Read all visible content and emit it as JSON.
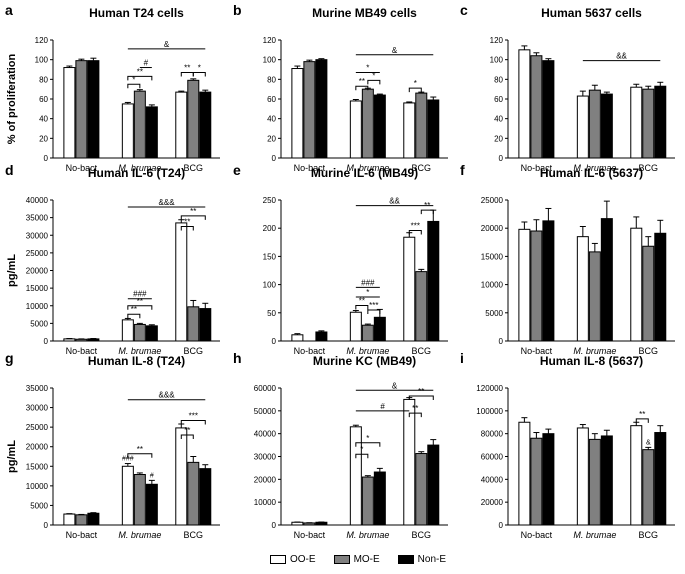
{
  "colors": {
    "oo": "#ffffff",
    "mo": "#808080",
    "non": "#000000",
    "axis": "#000000"
  },
  "legend": [
    {
      "label": "OO-E",
      "color": "#ffffff"
    },
    {
      "label": "MO-E",
      "color": "#808080"
    },
    {
      "label": "Non-E",
      "color": "#000000"
    }
  ],
  "chart_data": [
    {
      "letter": "a",
      "title": "Human T24 cells",
      "type": "bar",
      "ylabel": "% of proliferation",
      "ylim": [
        0,
        120
      ],
      "yticks": [
        0,
        20,
        40,
        60,
        80,
        100,
        120
      ],
      "tick_labels": [
        "0",
        "20",
        "40",
        "60",
        "80",
        "100",
        "120"
      ],
      "categories": [
        "No-bact",
        "M. brumae",
        "BCG"
      ],
      "series": [
        {
          "name": "OO-E",
          "values": [
            92,
            55,
            67
          ],
          "errors": [
            1.5,
            1.5,
            1
          ]
        },
        {
          "name": "MO-E",
          "values": [
            99,
            68,
            79
          ],
          "errors": [
            1.5,
            1.5,
            1.5
          ]
        },
        {
          "name": "Non-E",
          "values": [
            99,
            52,
            67
          ],
          "errors": [
            2.5,
            2,
            2
          ]
        }
      ],
      "annotations": [
        {
          "from": [
            1,
            0
          ],
          "to": [
            2,
            2
          ],
          "y": 111,
          "label": "&",
          "style": "line"
        },
        {
          "from": [
            1,
            0
          ],
          "to": [
            1,
            1
          ],
          "y": 75,
          "label": "*",
          "style": "bracket"
        },
        {
          "from": [
            1,
            0
          ],
          "to": [
            1,
            2
          ],
          "y": 83,
          "label": "**",
          "style": "bracket"
        },
        {
          "from": [
            1,
            1
          ],
          "to": [
            1,
            2
          ],
          "y": 92,
          "label": "#",
          "style": "line"
        },
        {
          "from": [
            2,
            0
          ],
          "to": [
            2,
            1
          ],
          "y": 87,
          "label": "**",
          "style": "bracket"
        },
        {
          "from": [
            2,
            1
          ],
          "to": [
            2,
            2
          ],
          "y": 87,
          "label": "*",
          "style": "bracket"
        }
      ]
    },
    {
      "letter": "b",
      "title": "Murine MB49 cells",
      "type": "bar",
      "ylabel": "",
      "ylim": [
        0,
        120
      ],
      "yticks": [
        0,
        20,
        40,
        60,
        80,
        100,
        120
      ],
      "tick_labels": [
        "0",
        "20",
        "40",
        "60",
        "80",
        "100",
        "120"
      ],
      "categories": [
        "No-bact",
        "M. brumae",
        "BCG"
      ],
      "series": [
        {
          "name": "OO-E",
          "values": [
            91,
            58,
            56
          ],
          "errors": [
            2.5,
            1.5,
            1
          ]
        },
        {
          "name": "MO-E",
          "values": [
            98,
            70,
            66
          ],
          "errors": [
            1.5,
            1,
            1
          ]
        },
        {
          "name": "Non-E",
          "values": [
            100,
            64,
            59
          ],
          "errors": [
            1,
            1,
            3
          ]
        }
      ],
      "annotations": [
        {
          "from": [
            1,
            0
          ],
          "to": [
            2,
            2
          ],
          "y": 105,
          "label": "&",
          "style": "line"
        },
        {
          "from": [
            1,
            0
          ],
          "to": [
            1,
            2
          ],
          "y": 87,
          "label": "*",
          "style": "line"
        },
        {
          "from": [
            1,
            0
          ],
          "to": [
            1,
            1
          ],
          "y": 73,
          "label": "**",
          "style": "bracket"
        },
        {
          "from": [
            1,
            1
          ],
          "to": [
            1,
            2
          ],
          "y": 79,
          "label": "*",
          "style": "bracket"
        },
        {
          "from": [
            2,
            0
          ],
          "to": [
            2,
            1
          ],
          "y": 71,
          "label": "*",
          "style": "bracket"
        }
      ]
    },
    {
      "letter": "c",
      "title": "Human 5637 cells",
      "type": "bar",
      "ylabel": "",
      "ylim": [
        0,
        120
      ],
      "yticks": [
        0,
        20,
        40,
        60,
        80,
        100,
        120
      ],
      "tick_labels": [
        "0",
        "20",
        "40",
        "60",
        "80",
        "100",
        "120"
      ],
      "categories": [
        "No-bact",
        "M. brumae",
        "BCG"
      ],
      "series": [
        {
          "name": "OO-E",
          "values": [
            110,
            63,
            72
          ],
          "errors": [
            4,
            5,
            3
          ]
        },
        {
          "name": "MO-E",
          "values": [
            104,
            69,
            70
          ],
          "errors": [
            3,
            5,
            3
          ]
        },
        {
          "name": "Non-E",
          "values": [
            99,
            65,
            73
          ],
          "errors": [
            2,
            2,
            4
          ]
        }
      ],
      "annotations": [
        {
          "from": [
            1,
            0
          ],
          "to": [
            2,
            2
          ],
          "y": 99,
          "label": "&&",
          "style": "line"
        }
      ]
    },
    {
      "letter": "d",
      "title": "Human IL-6 (T24)",
      "type": "bar",
      "ylabel": "pg/mL",
      "ylim": [
        0,
        40000
      ],
      "yticks": [
        0,
        5000,
        10000,
        15000,
        20000,
        25000,
        30000,
        35000,
        40000
      ],
      "tick_labels": [
        "0",
        "5000",
        "10000",
        "15000",
        "20000",
        "25000",
        "30000",
        "35000",
        "40000"
      ],
      "categories": [
        "No-bact",
        "M. brumae",
        "BCG"
      ],
      "series": [
        {
          "name": "OO-E",
          "values": [
            600,
            6000,
            33500
          ],
          "errors": [
            100,
            400,
            900
          ]
        },
        {
          "name": "MO-E",
          "values": [
            500,
            4700,
            9700
          ],
          "errors": [
            100,
            300,
            1800
          ]
        },
        {
          "name": "Non-E",
          "values": [
            600,
            4300,
            9200
          ],
          "errors": [
            100,
            300,
            1500
          ]
        }
      ],
      "annotations": [
        {
          "from": [
            1,
            0
          ],
          "to": [
            2,
            2
          ],
          "y": 38000,
          "label": "&&&",
          "style": "line"
        },
        {
          "from": [
            1,
            0
          ],
          "to": [
            1,
            2
          ],
          "y": 12000,
          "label": "###",
          "style": "line"
        },
        {
          "from": [
            1,
            0
          ],
          "to": [
            1,
            2
          ],
          "y": 10000,
          "label": "**",
          "style": "bracket"
        },
        {
          "from": [
            1,
            0
          ],
          "to": [
            1,
            1
          ],
          "y": 7600,
          "label": "**",
          "style": "bracket"
        },
        {
          "from": [
            2,
            0
          ],
          "to": [
            2,
            2
          ],
          "y": 35500,
          "label": "**",
          "style": "bracket"
        },
        {
          "from": [
            2,
            0
          ],
          "to": [
            2,
            1
          ],
          "y": 32500,
          "label": "**",
          "style": "bracket"
        }
      ]
    },
    {
      "letter": "e",
      "title": "Murine IL-6 (MB49)",
      "type": "bar",
      "ylabel": "",
      "ylim": [
        0,
        250
      ],
      "yticks": [
        0,
        50,
        100,
        150,
        200,
        250
      ],
      "tick_labels": [
        "0",
        "50",
        "100",
        "150",
        "200",
        "250"
      ],
      "categories": [
        "No-bact",
        "M. brumae",
        "BCG"
      ],
      "series": [
        {
          "name": "OO-E",
          "values": [
            11,
            51,
            184
          ],
          "errors": [
            2,
            3,
            8
          ]
        },
        {
          "name": "MO-E",
          "values": [
            0,
            28,
            123
          ],
          "errors": [
            0,
            2,
            4
          ]
        },
        {
          "name": "Non-E",
          "values": [
            16,
            42,
            212
          ],
          "errors": [
            2,
            14,
            20
          ]
        }
      ],
      "annotations": [
        {
          "from": [
            1,
            0
          ],
          "to": [
            2,
            2
          ],
          "y": 240,
          "label": "&&",
          "style": "line"
        },
        {
          "from": [
            1,
            0
          ],
          "to": [
            1,
            2
          ],
          "y": 95,
          "label": "###",
          "style": "line"
        },
        {
          "from": [
            1,
            0
          ],
          "to": [
            1,
            2
          ],
          "y": 78,
          "label": "*",
          "style": "line"
        },
        {
          "from": [
            1,
            0
          ],
          "to": [
            1,
            1
          ],
          "y": 63,
          "label": "**",
          "style": "bracket"
        },
        {
          "from": [
            1,
            1
          ],
          "to": [
            1,
            2
          ],
          "y": 55,
          "label": "***",
          "style": "bracket"
        },
        {
          "from": [
            2,
            0
          ],
          "to": [
            2,
            1
          ],
          "y": 196,
          "label": "***",
          "style": "bracket"
        },
        {
          "from": [
            2,
            1
          ],
          "to": [
            2,
            2
          ],
          "y": 232,
          "label": "**",
          "style": "bracket"
        }
      ]
    },
    {
      "letter": "f",
      "title": "Human IL-6 (5637)",
      "type": "bar",
      "ylabel": "",
      "ylim": [
        0,
        25000
      ],
      "yticks": [
        0,
        5000,
        10000,
        15000,
        20000,
        25000
      ],
      "tick_labels": [
        "0",
        "5000",
        "10000",
        "15000",
        "20000",
        "25000"
      ],
      "categories": [
        "No-bact",
        "M. brumae",
        "BCG"
      ],
      "series": [
        {
          "name": "OO-E",
          "values": [
            19800,
            18500,
            20000
          ],
          "errors": [
            1300,
            1800,
            2000
          ]
        },
        {
          "name": "MO-E",
          "values": [
            19500,
            15800,
            16800
          ],
          "errors": [
            2000,
            1500,
            1700
          ]
        },
        {
          "name": "Non-E",
          "values": [
            21300,
            21700,
            19100
          ],
          "errors": [
            2200,
            3100,
            2300
          ]
        }
      ],
      "annotations": []
    },
    {
      "letter": "g",
      "title": "Human IL-8 (T24)",
      "type": "bar",
      "ylabel": "pg/mL",
      "ylim": [
        0,
        35000
      ],
      "yticks": [
        0,
        5000,
        10000,
        15000,
        20000,
        25000,
        30000,
        35000
      ],
      "tick_labels": [
        "0",
        "5000",
        "10000",
        "15000",
        "20000",
        "25000",
        "30000",
        "35000"
      ],
      "categories": [
        "No-bact",
        "M. brumae",
        "BCG"
      ],
      "series": [
        {
          "name": "OO-E",
          "values": [
            2800,
            15000,
            24800
          ],
          "errors": [
            100,
            700,
            1000
          ]
        },
        {
          "name": "MO-E",
          "values": [
            2600,
            12900,
            16000
          ],
          "errors": [
            100,
            400,
            1500
          ]
        },
        {
          "name": "Non-E",
          "values": [
            3000,
            10400,
            14400
          ],
          "errors": [
            150,
            1000,
            1000
          ]
        }
      ],
      "annotations": [
        {
          "from": [
            1,
            0
          ],
          "to": [
            2,
            2
          ],
          "y": 32000,
          "label": "&&&",
          "style": "line"
        },
        {
          "from": [
            1,
            0
          ],
          "to": [
            1,
            2
          ],
          "y": 18200,
          "label": "**",
          "style": "bracket"
        },
        {
          "from": [
            2,
            0
          ],
          "to": [
            2,
            2
          ],
          "y": 26700,
          "label": "***",
          "style": "bracket"
        },
        {
          "from": [
            2,
            0
          ],
          "to": [
            2,
            1
          ],
          "y": 23000,
          "label": "**",
          "style": "bracket"
        }
      ],
      "marks": [
        {
          "group": 1,
          "series": 0,
          "label": "###"
        },
        {
          "group": 1,
          "series": 2,
          "label": "#"
        }
      ]
    },
    {
      "letter": "h",
      "title": "Murine KC (MB49)",
      "type": "bar",
      "ylabel": "",
      "ylim": [
        0,
        60000
      ],
      "yticks": [
        0,
        10000,
        20000,
        30000,
        40000,
        50000,
        60000
      ],
      "tick_labels": [
        "0",
        "10000",
        "20000",
        "30000",
        "40000",
        "50000",
        "60000"
      ],
      "categories": [
        "No-bact",
        "M. brumae",
        "BCG"
      ],
      "series": [
        {
          "name": "OO-E",
          "values": [
            1200,
            43000,
            55000
          ],
          "errors": [
            100,
            700,
            800
          ]
        },
        {
          "name": "MO-E",
          "values": [
            900,
            21000,
            31300
          ],
          "errors": [
            100,
            600,
            800
          ]
        },
        {
          "name": "Non-E",
          "values": [
            1200,
            23200,
            35000
          ],
          "errors": [
            100,
            1600,
            2400
          ]
        }
      ],
      "annotations": [
        {
          "from": [
            1,
            0
          ],
          "to": [
            2,
            2
          ],
          "y": 59000,
          "label": "&",
          "style": "line"
        },
        {
          "from": [
            1,
            0
          ],
          "to": [
            2,
            0
          ],
          "y": 50000,
          "label": "#",
          "style": "line"
        },
        {
          "from": [
            1,
            0
          ],
          "to": [
            1,
            2
          ],
          "y": 36000,
          "label": "*",
          "style": "bracket"
        },
        {
          "from": [
            1,
            0
          ],
          "to": [
            1,
            1
          ],
          "y": 31000,
          "label": "*",
          "style": "bracket"
        },
        {
          "from": [
            2,
            0
          ],
          "to": [
            2,
            2
          ],
          "y": 56500,
          "label": "**",
          "style": "bracket"
        },
        {
          "from": [
            2,
            0
          ],
          "to": [
            2,
            1
          ],
          "y": 49000,
          "label": "**",
          "style": "bracket"
        }
      ]
    },
    {
      "letter": "i",
      "title": "Human IL-8 (5637)",
      "type": "bar",
      "ylabel": "",
      "ylim": [
        0,
        120000
      ],
      "yticks": [
        0,
        20000,
        40000,
        60000,
        80000,
        100000,
        120000
      ],
      "tick_labels": [
        "0",
        "20000",
        "40000",
        "60000",
        "80000",
        "100000",
        "120000"
      ],
      "categories": [
        "No-bact",
        "M. brumae",
        "BCG"
      ],
      "series": [
        {
          "name": "OO-E",
          "values": [
            90000,
            85000,
            87000
          ],
          "errors": [
            4000,
            3000,
            3000
          ]
        },
        {
          "name": "MO-E",
          "values": [
            76000,
            75000,
            66000
          ],
          "errors": [
            5000,
            5000,
            2000
          ]
        },
        {
          "name": "Non-E",
          "values": [
            80000,
            78000,
            81000
          ],
          "errors": [
            4000,
            5000,
            6000
          ]
        }
      ],
      "annotations": [
        {
          "from": [
            2,
            0
          ],
          "to": [
            2,
            1
          ],
          "y": 93000,
          "label": "**",
          "style": "bracket"
        }
      ],
      "marks": [
        {
          "group": 2,
          "series": 1,
          "label": "&"
        }
      ]
    }
  ]
}
